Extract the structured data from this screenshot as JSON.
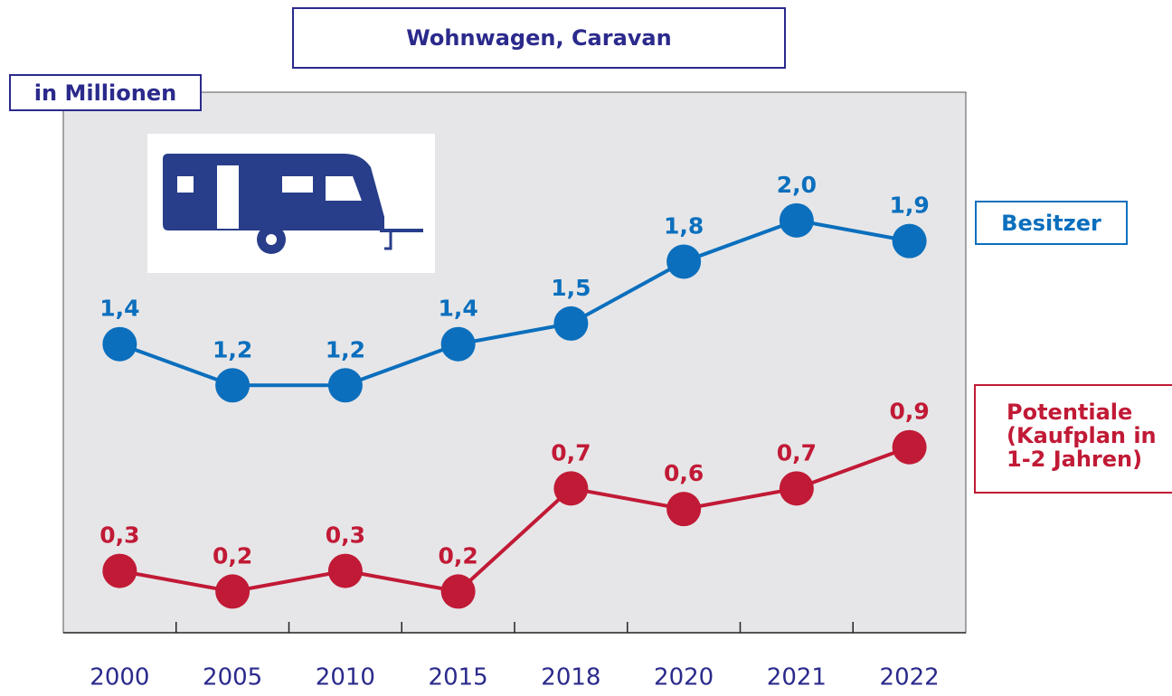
{
  "chart_data": {
    "type": "line",
    "title": "Wohnwagen, Caravan",
    "y_label": "in Millionen",
    "categories": [
      "2000",
      "2005",
      "2010",
      "2015",
      "2018",
      "2020",
      "2021",
      "2022"
    ],
    "series": [
      {
        "name": "Besitzer",
        "color": "#0b6fbd",
        "values": [
          1.4,
          1.2,
          1.2,
          1.4,
          1.5,
          1.8,
          2.0,
          1.9
        ],
        "value_labels": [
          "1,4",
          "1,2",
          "1,2",
          "1,4",
          "1,5",
          "1,8",
          "2,0",
          "1,9"
        ]
      },
      {
        "name": "Potentiale (Kaufplan in 1-2 Jahren)",
        "color": "#c11a36",
        "values": [
          0.3,
          0.2,
          0.3,
          0.2,
          0.7,
          0.6,
          0.7,
          0.9
        ],
        "value_labels": [
          "0,3",
          "0,2",
          "0,3",
          "0,2",
          "0,7",
          "0,6",
          "0,7",
          "0,9"
        ]
      }
    ],
    "ylim": [
      0,
      2.6
    ]
  }
}
